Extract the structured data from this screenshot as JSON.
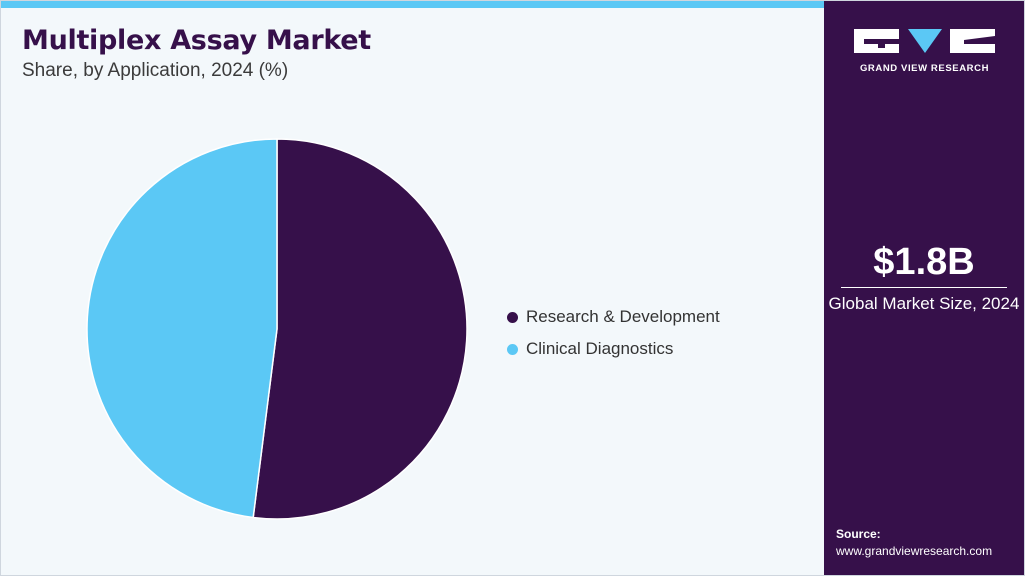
{
  "header": {
    "title": "Multiplex Assay Market",
    "subtitle": "Share, by Application, 2024 (%)"
  },
  "chart_data": {
    "type": "pie",
    "title": "Multiplex Assay Market",
    "subtitle": "Share, by Application, 2024 (%)",
    "categories": [
      "Research & Development",
      "Clinical Diagnostics"
    ],
    "values": [
      52,
      48
    ],
    "colors": [
      "#36104a",
      "#5bc8f5"
    ],
    "start_angle_deg": 0,
    "direction": "clockwise",
    "legend_position": "right"
  },
  "side_panel": {
    "logo_text": "GRAND VIEW RESEARCH",
    "market_value": "$1.8B",
    "market_label": "Global Market Size, 2024",
    "source_label": "Source:",
    "source_url": "www.grandviewresearch.com"
  },
  "colors": {
    "accent_bar": "#5bc8f5",
    "panel_bg": "#36104a",
    "title": "#36104a",
    "background": "#f3f8fb"
  }
}
